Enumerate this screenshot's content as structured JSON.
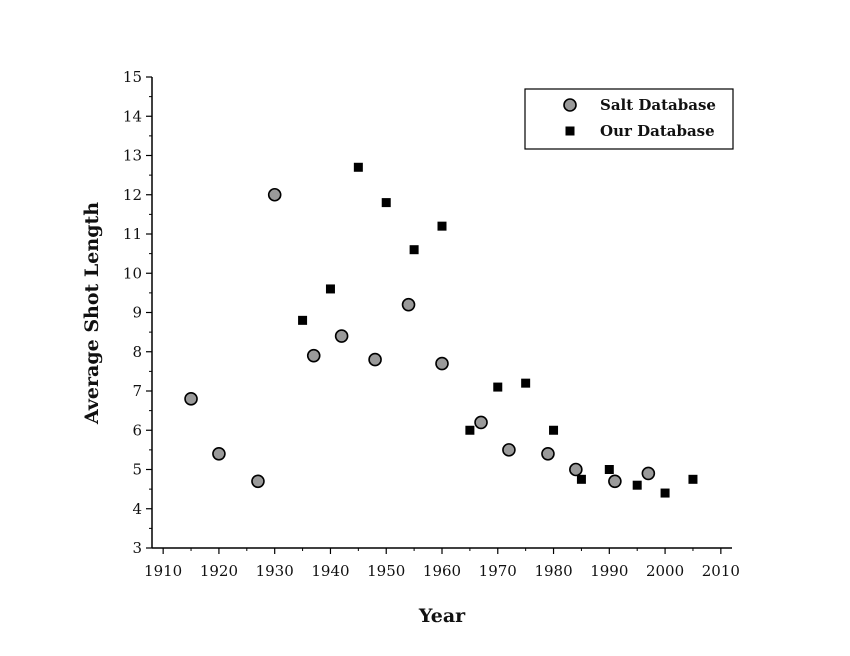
{
  "chart_data": {
    "type": "scatter",
    "xlabel": "Year",
    "ylabel": "Average Shot Length",
    "xlim": [
      1908,
      2012
    ],
    "ylim": [
      3,
      15
    ],
    "xticks": [
      1910,
      1920,
      1930,
      1940,
      1950,
      1960,
      1970,
      1980,
      1990,
      2000,
      2010
    ],
    "yticks": [
      3,
      4,
      5,
      6,
      7,
      8,
      9,
      10,
      11,
      12,
      13,
      14,
      15
    ],
    "grid": false,
    "legend_position": "top-right",
    "series": [
      {
        "name": "Salt Database",
        "marker": "circle",
        "color": "#9a9a9a",
        "points": [
          {
            "x": 1915,
            "y": 6.8
          },
          {
            "x": 1920,
            "y": 5.4
          },
          {
            "x": 1927,
            "y": 4.7
          },
          {
            "x": 1930,
            "y": 12.0
          },
          {
            "x": 1937,
            "y": 7.9
          },
          {
            "x": 1942,
            "y": 8.4
          },
          {
            "x": 1948,
            "y": 7.8
          },
          {
            "x": 1954,
            "y": 9.2
          },
          {
            "x": 1960,
            "y": 7.7
          },
          {
            "x": 1967,
            "y": 6.2
          },
          {
            "x": 1972,
            "y": 5.5
          },
          {
            "x": 1979,
            "y": 5.4
          },
          {
            "x": 1984,
            "y": 5.0
          },
          {
            "x": 1991,
            "y": 4.7
          },
          {
            "x": 1997,
            "y": 4.9
          }
        ]
      },
      {
        "name": "Our Database",
        "marker": "square",
        "color": "#000000",
        "points": [
          {
            "x": 1935,
            "y": 8.8
          },
          {
            "x": 1940,
            "y": 9.6
          },
          {
            "x": 1945,
            "y": 12.7
          },
          {
            "x": 1950,
            "y": 11.8
          },
          {
            "x": 1955,
            "y": 10.6
          },
          {
            "x": 1960,
            "y": 11.2
          },
          {
            "x": 1965,
            "y": 6.0
          },
          {
            "x": 1970,
            "y": 7.1
          },
          {
            "x": 1975,
            "y": 7.2
          },
          {
            "x": 1980,
            "y": 6.0
          },
          {
            "x": 1985,
            "y": 4.75
          },
          {
            "x": 1990,
            "y": 5.0
          },
          {
            "x": 1995,
            "y": 4.6
          },
          {
            "x": 2000,
            "y": 4.4
          },
          {
            "x": 2005,
            "y": 4.75
          }
        ]
      }
    ]
  }
}
